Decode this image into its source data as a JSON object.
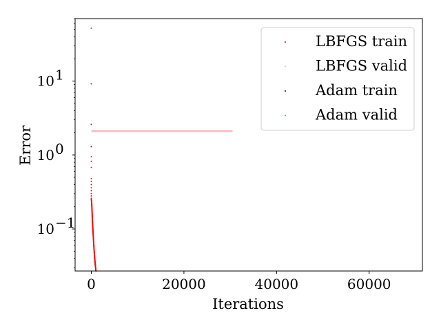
{
  "chart_data": {
    "type": "scatter",
    "xlabel": "Iterations",
    "ylabel": "Error",
    "x_scale": "linear",
    "y_scale": "log",
    "xlim": [
      -3500,
      71500
    ],
    "ylim": [
      0.027,
      70
    ],
    "x_ticks": [
      0,
      20000,
      40000,
      60000
    ],
    "x_tick_labels": [
      "0",
      "20000",
      "40000",
      "60000"
    ],
    "y_ticks": [
      0.1,
      1,
      10
    ],
    "y_tick_labels": [
      "10",
      "10",
      "10"
    ],
    "y_tick_exponents": [
      "−1",
      "0",
      "1"
    ],
    "grid": false,
    "legend_position": "top-right",
    "series": [
      {
        "name": "LBFGS train",
        "color": "#ff0000",
        "x": [
          0,
          0,
          0,
          0,
          0,
          0,
          0,
          0,
          0,
          0,
          0,
          0,
          0,
          0,
          0,
          0,
          50,
          100,
          150,
          200,
          250,
          300,
          350,
          400,
          450,
          500,
          550,
          600,
          650,
          700,
          750,
          800,
          850,
          900,
          950,
          1000
        ],
        "y": [
          52,
          9.2,
          2.6,
          1.3,
          0.95,
          0.82,
          0.68,
          0.48,
          0.44,
          0.4,
          0.36,
          0.33,
          0.3,
          0.28,
          0.26,
          0.25,
          0.24,
          0.21,
          0.18,
          0.15,
          0.125,
          0.11,
          0.097,
          0.085,
          0.075,
          0.066,
          0.058,
          0.052,
          0.047,
          0.043,
          0.039,
          0.036,
          0.033,
          0.031,
          0.029,
          0.027
        ]
      },
      {
        "name": "LBFGS valid",
        "color": "#ffb6c1",
        "x_range": [
          0,
          30500
        ],
        "y_value": 2.1
      },
      {
        "name": "Adam train",
        "color": "#0000cd",
        "x": [],
        "y": []
      },
      {
        "name": "Adam valid",
        "color": "#20b2aa",
        "x": [],
        "y": []
      }
    ]
  }
}
